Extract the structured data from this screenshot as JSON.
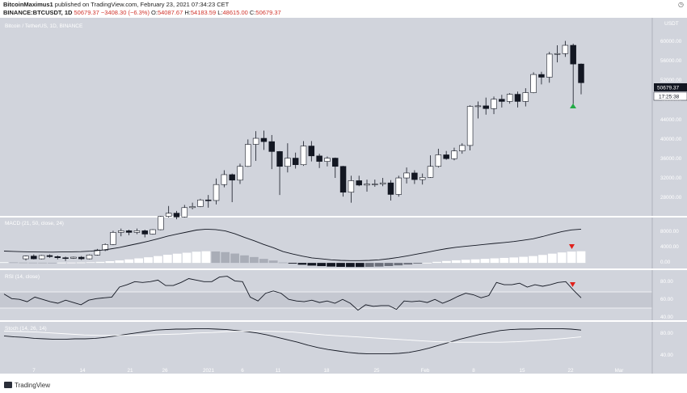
{
  "header": {
    "author": "BitcoinMaximus1",
    "published_text": "published on TradingView.com, February 23, 2021 07:34:23 CET",
    "symbol_line": "BINANCE:BTCUSDT, 1D",
    "last": "50679.37",
    "change": "−3408.30 (−6.3%)",
    "o_label": "O:",
    "o": "54087.67",
    "h_label": "H:",
    "h": "54183.59",
    "l_label": "L:",
    "l": "48615.00",
    "c_label": "C:",
    "c": "50679.37",
    "clock_icon": "clock-icon"
  },
  "main_pane": {
    "title": "Bitcoin / TetherUS, 1D, BINANCE",
    "currency": "USDT",
    "price_ticks": [
      "60000.00",
      "56000.00",
      "52000.00",
      "48000.00",
      "44000.00",
      "40000.00",
      "36000.00",
      "32000.00",
      "28000.00"
    ],
    "last_price_label": "50679.37",
    "countdown_label": "17:25:38",
    "colors": {
      "background": "#d1d4dc",
      "price_label": "#131722",
      "up_arrow": "#22ab45"
    }
  },
  "macd_pane": {
    "title": "MACD (21, 50, close, 24)",
    "ticks": [
      "8000.00",
      "4000.00",
      "0.00"
    ],
    "colors": {
      "signal_arrow": "#e0201b"
    }
  },
  "rsi_pane": {
    "title": "RSI (14, close)",
    "ticks": [
      "80.00",
      "60.00",
      "40.00"
    ],
    "colors": {
      "signal_arrow": "#e0201b"
    }
  },
  "stoch_pane": {
    "title": "Stoch (14, 26, 14)",
    "ticks": [
      "80.00",
      "40.00"
    ]
  },
  "time_axis": {
    "labels": [
      "7",
      "14",
      "21",
      "26",
      "2021",
      "6",
      "11",
      "18",
      "25",
      "Feb",
      "8",
      "15",
      "22",
      "Mar"
    ]
  },
  "footer": {
    "brand": "TradingView"
  },
  "chart_data": [
    {
      "type": "candlestick",
      "title": "Bitcoin / TetherUS, 1D, BINANCE",
      "xlabel": "",
      "ylabel": "",
      "ylim": [
        26500,
        62500
      ],
      "x_ticks": [
        "7",
        "14",
        "21",
        "26",
        "2021",
        "6",
        "11",
        "18",
        "25",
        "Feb",
        "8",
        "15",
        "22",
        "Mar"
      ],
      "y_ticks": [
        60000,
        56000,
        52000,
        48000,
        44000,
        40000,
        36000,
        32000,
        28000
      ],
      "ohlc_approx": [
        [
          18700,
          19300,
          18400,
          19200
        ],
        [
          19200,
          19500,
          18600,
          18700
        ],
        [
          18700,
          19400,
          18600,
          19300
        ],
        [
          19300,
          19500,
          18900,
          19100
        ],
        [
          19100,
          19300,
          18600,
          18900
        ],
        [
          18900,
          19100,
          18300,
          18800
        ],
        [
          18800,
          19100,
          18700,
          19000
        ],
        [
          19000,
          19200,
          18500,
          18700
        ],
        [
          18700,
          19500,
          18600,
          19400
        ],
        [
          19400,
          20500,
          19300,
          20300
        ],
        [
          20300,
          21500,
          20100,
          21300
        ],
        [
          21300,
          23800,
          21200,
          23500
        ],
        [
          23500,
          24200,
          22800,
          23800
        ],
        [
          23800,
          24000,
          23000,
          23500
        ],
        [
          23500,
          24200,
          23200,
          23800
        ],
        [
          23800,
          24000,
          22600,
          23200
        ],
        [
          23200,
          24100,
          23100,
          24000
        ],
        [
          24000,
          26500,
          23900,
          26400
        ],
        [
          26400,
          28300,
          26200,
          27000
        ],
        [
          27000,
          27400,
          25900,
          26300
        ],
        [
          26300,
          28500,
          26200,
          28000
        ],
        [
          28000,
          28900,
          27700,
          28200
        ],
        [
          28200,
          29600,
          28100,
          29400
        ],
        [
          29400,
          30300,
          28000,
          29300
        ],
        [
          29300,
          33300,
          28600,
          32200
        ],
        [
          32200,
          34800,
          31700,
          34000
        ],
        [
          34000,
          34200,
          29000,
          33000
        ],
        [
          33000,
          36000,
          32300,
          35500
        ],
        [
          35500,
          40400,
          35400,
          39500
        ],
        [
          39500,
          41900,
          36500,
          40600
        ],
        [
          40600,
          42000,
          38500,
          40000
        ],
        [
          40000,
          41200,
          35000,
          38200
        ],
        [
          38200,
          38300,
          30300,
          35500
        ],
        [
          35500,
          39700,
          34400,
          37000
        ],
        [
          37000,
          38000,
          35100,
          35800
        ],
        [
          35800,
          40100,
          35600,
          39200
        ],
        [
          39200,
          40100,
          36400,
          37400
        ],
        [
          37400,
          37800,
          35200,
          36400
        ],
        [
          36400,
          37300,
          35500,
          37000
        ],
        [
          37000,
          37100,
          33400,
          35500
        ],
        [
          35500,
          35600,
          30000,
          30800
        ],
        [
          30800,
          33800,
          28900,
          32900
        ],
        [
          32900,
          33800,
          31900,
          32100
        ],
        [
          32100,
          33100,
          30900,
          32300
        ],
        [
          32300,
          33100,
          31800,
          32300
        ],
        [
          32300,
          33400,
          31900,
          32500
        ],
        [
          32500,
          33000,
          29300,
          30400
        ],
        [
          30400,
          33800,
          30000,
          33400
        ],
        [
          33400,
          35300,
          32400,
          34300
        ],
        [
          34300,
          34800,
          32300,
          33100
        ],
        [
          33100,
          34200,
          32200,
          33500
        ],
        [
          33500,
          37500,
          33400,
          35500
        ],
        [
          35500,
          38700,
          35300,
          37600
        ],
        [
          37600,
          38300,
          36700,
          36900
        ],
        [
          36900,
          38900,
          36600,
          38300
        ],
        [
          38300,
          39700,
          37800,
          39300
        ],
        [
          39300,
          46600,
          38400,
          46400
        ],
        [
          46400,
          47300,
          44200,
          46500
        ],
        [
          46500,
          48000,
          44900,
          46000
        ],
        [
          46000,
          48200,
          45000,
          47700
        ],
        [
          47700,
          48500,
          46200,
          47300
        ],
        [
          47300,
          48800,
          46900,
          48600
        ],
        [
          48600,
          49100,
          46200,
          47300
        ],
        [
          47300,
          49700,
          46400,
          48900
        ],
        [
          48900,
          52600,
          48800,
          52200
        ],
        [
          52200,
          52700,
          50400,
          51700
        ],
        [
          51700,
          56300,
          50700,
          55900
        ],
        [
          55900,
          57500,
          54400,
          56000
        ],
        [
          56000,
          58300,
          55400,
          57500
        ],
        [
          57500,
          57800,
          46700,
          54100
        ],
        [
          54100,
          54200,
          48600,
          50700
        ]
      ]
    },
    {
      "type": "bar",
      "title": "MACD (21, 50, close, 24)",
      "ylim": [
        -1200,
        9800
      ],
      "y_ticks": [
        8000,
        4000,
        0
      ],
      "series": [
        {
          "values": [
            150,
            120,
            80,
            60,
            50,
            40,
            60,
            70,
            90,
            140,
            230,
            370,
            540,
            760,
            980,
            1220,
            1480,
            1760,
            1990,
            2200,
            2420,
            2520,
            2470,
            2330,
            2020,
            1630,
            1270,
            870,
            520,
            100,
            -160,
            -390,
            -580,
            -690,
            -790,
            -850,
            -880,
            -880,
            -850,
            -790,
            -680,
            -530,
            -350,
            -160,
            30,
            230,
            410,
            560,
            670,
            770,
            880,
            980,
            1080,
            1180,
            1320,
            1480,
            1720,
            2000,
            2260,
            2440,
            2520
          ]
        }
      ]
    },
    {
      "type": "line",
      "title": "RSI (14, close)",
      "ylim": [
        30,
        95
      ],
      "y_ticks": [
        80,
        60,
        40
      ],
      "series": [
        {
          "values": [
            64,
            58,
            57,
            54,
            60,
            57,
            54,
            52,
            56,
            53,
            50,
            56,
            58,
            59,
            60,
            73,
            76,
            80,
            79,
            80,
            82,
            75,
            75,
            79,
            84,
            82,
            80,
            80,
            86,
            87,
            81,
            80,
            60,
            55,
            65,
            68,
            65,
            57,
            55,
            54,
            56,
            53,
            55,
            52,
            57,
            52,
            43,
            50,
            48,
            49,
            49,
            44,
            55,
            54,
            55,
            53,
            57,
            52,
            56,
            61,
            65,
            63,
            59,
            62,
            79,
            76,
            76,
            78,
            73,
            76,
            74,
            76,
            79,
            80,
            69,
            59
          ]
        }
      ]
    },
    {
      "type": "line",
      "title": "Stoch (14, 26, 14)",
      "ylim": [
        10,
        100
      ],
      "y_ticks": [
        80,
        40
      ],
      "series": [
        {
          "values": [
            71,
            69,
            68,
            66,
            65,
            64,
            64,
            65,
            65,
            66,
            68,
            71,
            74,
            77,
            80,
            83,
            84,
            85,
            85,
            86,
            86,
            85,
            84,
            82,
            80,
            77,
            73,
            68,
            63,
            58,
            52,
            47,
            43,
            40,
            37,
            35,
            34,
            34,
            34,
            35,
            37,
            41,
            46,
            52,
            58,
            64,
            69,
            74,
            78,
            82,
            84,
            85,
            85,
            86,
            86,
            86,
            85,
            83
          ]
        },
        {
          "values": [
            81,
            80,
            79,
            77,
            75,
            73,
            72,
            72,
            72,
            73,
            74,
            75,
            77,
            78,
            80,
            81,
            81,
            80,
            79,
            76,
            73,
            71,
            69,
            67,
            65,
            63,
            61,
            59,
            58,
            58,
            58,
            58,
            59,
            61,
            63,
            66,
            69
          ]
        }
      ]
    }
  ]
}
